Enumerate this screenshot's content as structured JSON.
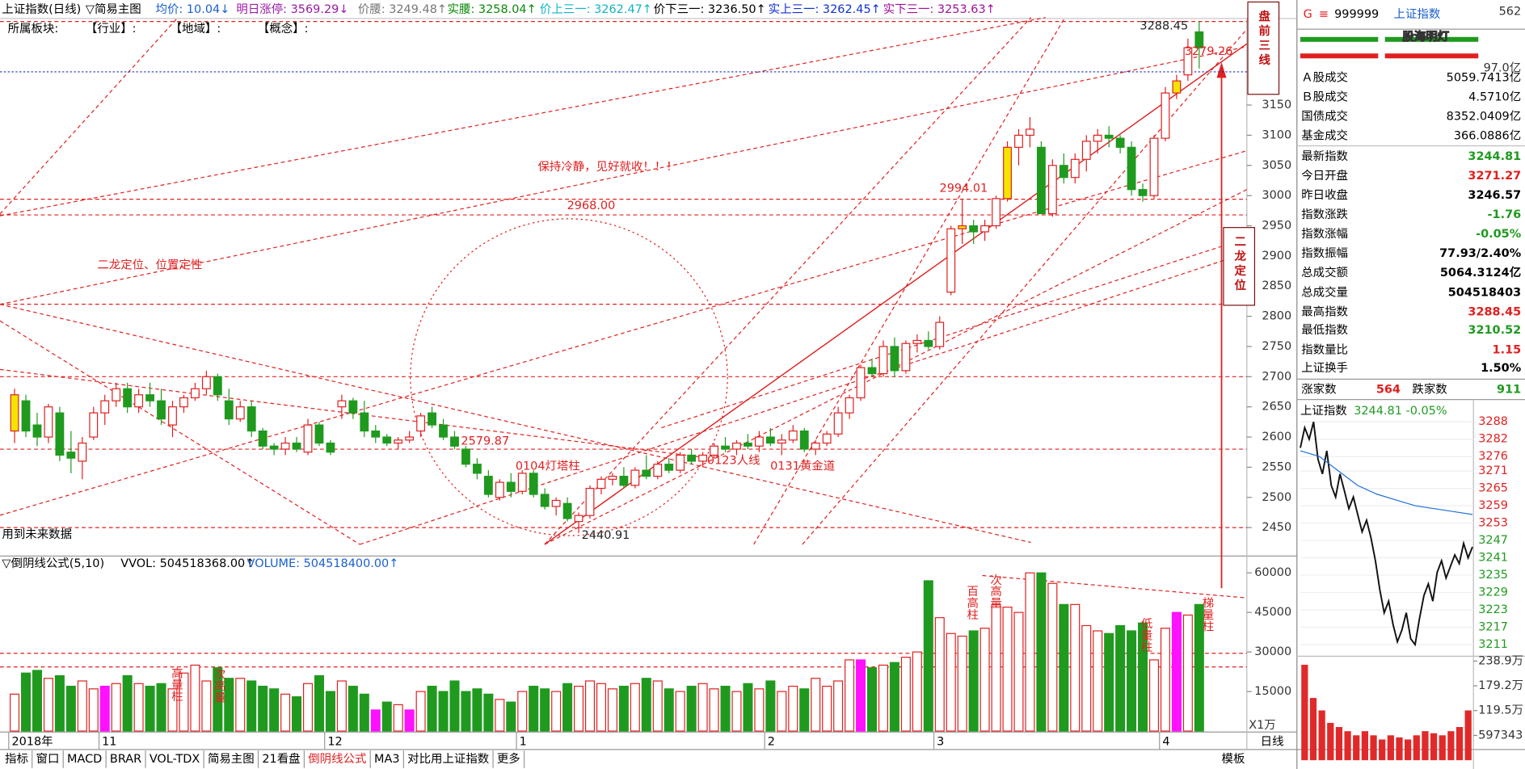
{
  "header": {
    "items": [
      {
        "text": "上证指数(日线)",
        "color": "#000000"
      },
      {
        "text": "▽简易主图",
        "color": "#000000"
      },
      {
        "text": "均价: 10.04↓",
        "color": "#1a5fd0"
      },
      {
        "text": "明日涨停: 3569.29↓",
        "color": "#9a1aa8"
      },
      {
        "text": "价腰: 3249.48↑",
        "color": "#777777"
      },
      {
        "text": "实腰: 3258.04↑",
        "color": "#0a8a0a"
      },
      {
        "text": "价上三一: 3262.47↑",
        "color": "#11b3c8"
      },
      {
        "text": "价下三一: 3236.50↑",
        "color": "#000000"
      },
      {
        "text": "实上三一: 3262.45↑",
        "color": "#1030d0"
      },
      {
        "text": "实下三一: 3253.63↑",
        "color": "#a0109a"
      }
    ],
    "sector": [
      "所属板块:",
      "【行业】:",
      "【地域】:",
      "【概念】:"
    ]
  },
  "chart_data": [
    {
      "type": "candlestick",
      "categories": [
        "2018年",
        null,
        null,
        null,
        null,
        null,
        null,
        null,
        "11",
        null,
        null,
        null,
        null,
        null,
        null,
        null,
        null,
        null,
        null,
        null,
        null,
        null,
        null,
        null,
        null,
        null,
        null,
        null,
        "12",
        null,
        null,
        null,
        null,
        null,
        null,
        null,
        null,
        null,
        null,
        null,
        null,
        null,
        null,
        null,
        null,
        "1",
        null,
        null,
        null,
        null,
        null,
        null,
        null,
        null,
        null,
        null,
        null,
        null,
        null,
        null,
        null,
        null,
        null,
        null,
        null,
        null,
        null,
        "2",
        null,
        null,
        null,
        null,
        null,
        null,
        null,
        null,
        null,
        null,
        null,
        null,
        null,
        null,
        "3",
        null,
        null,
        null,
        null,
        null,
        null,
        null,
        null,
        null,
        null,
        null,
        null,
        null,
        null,
        null,
        null,
        null,
        null,
        null,
        "4",
        null,
        null,
        null
      ],
      "ohlc": [
        [
          2610,
          2680,
          2590,
          2670
        ],
        [
          2660,
          2670,
          2600,
          2610
        ],
        [
          2620,
          2640,
          2585,
          2600
        ],
        [
          2600,
          2655,
          2590,
          2650
        ],
        [
          2640,
          2650,
          2560,
          2570
        ],
        [
          2575,
          2610,
          2540,
          2565
        ],
        [
          2560,
          2600,
          2530,
          2590
        ],
        [
          2600,
          2650,
          2595,
          2640
        ],
        [
          2640,
          2670,
          2620,
          2660
        ],
        [
          2660,
          2690,
          2650,
          2680
        ],
        [
          2680,
          2690,
          2640,
          2650
        ],
        [
          2650,
          2680,
          2640,
          2670
        ],
        [
          2670,
          2690,
          2650,
          2660
        ],
        [
          2660,
          2680,
          2620,
          2630
        ],
        [
          2620,
          2660,
          2600,
          2650
        ],
        [
          2650,
          2670,
          2640,
          2665
        ],
        [
          2665,
          2690,
          2660,
          2680
        ],
        [
          2680,
          2710,
          2670,
          2700
        ],
        [
          2700,
          2705,
          2660,
          2670
        ],
        [
          2660,
          2680,
          2620,
          2630
        ],
        [
          2630,
          2660,
          2625,
          2650
        ],
        [
          2650,
          2660,
          2600,
          2610
        ],
        [
          2610,
          2615,
          2580,
          2585
        ],
        [
          2585,
          2590,
          2570,
          2580
        ],
        [
          2580,
          2600,
          2570,
          2590
        ],
        [
          2590,
          2600,
          2575,
          2580
        ],
        [
          2575,
          2630,
          2570,
          2620
        ],
        [
          2620,
          2625,
          2585,
          2590
        ],
        [
          2590,
          2595,
          2570,
          2575
        ],
        [
          2650,
          2670,
          2630,
          2660
        ],
        [
          2660,
          2665,
          2630,
          2640
        ],
        [
          2640,
          2660,
          2600,
          2610
        ],
        [
          2610,
          2620,
          2590,
          2600
        ],
        [
          2600,
          2605,
          2585,
          2590
        ],
        [
          2590,
          2600,
          2580,
          2595
        ],
        [
          2595,
          2610,
          2590,
          2600
        ],
        [
          2610,
          2640,
          2600,
          2635
        ],
        [
          2640,
          2650,
          2615,
          2620
        ],
        [
          2620,
          2630,
          2595,
          2600
        ],
        [
          2600,
          2610,
          2580,
          2585
        ],
        [
          2580,
          2585,
          2550,
          2555
        ],
        [
          2555,
          2565,
          2530,
          2540
        ],
        [
          2535,
          2545,
          2500,
          2505
        ],
        [
          2500,
          2530,
          2495,
          2525
        ],
        [
          2525,
          2540,
          2500,
          2510
        ],
        [
          2510,
          2545,
          2505,
          2540
        ],
        [
          2540,
          2545,
          2500,
          2505
        ],
        [
          2505,
          2515,
          2480,
          2485
        ],
        [
          2485,
          2500,
          2470,
          2495
        ],
        [
          2490,
          2500,
          2460,
          2465
        ],
        [
          2460,
          2475,
          2440.91,
          2470
        ],
        [
          2470,
          2520,
          2465,
          2515
        ],
        [
          2515,
          2535,
          2505,
          2530
        ],
        [
          2530,
          2540,
          2520,
          2535
        ],
        [
          2535,
          2550,
          2515,
          2520
        ],
        [
          2520,
          2550,
          2515,
          2545
        ],
        [
          2545,
          2570,
          2530,
          2535
        ],
        [
          2535,
          2560,
          2530,
          2555
        ],
        [
          2555,
          2565,
          2540,
          2545
        ],
        [
          2545,
          2575,
          2540,
          2570
        ],
        [
          2570,
          2580,
          2555,
          2560
        ],
        [
          2560,
          2575,
          2550,
          2570
        ],
        [
          2570,
          2590,
          2565,
          2585
        ],
        [
          2585,
          2600,
          2575,
          2580
        ],
        [
          2580,
          2595,
          2570,
          2590
        ],
        [
          2590,
          2605,
          2580,
          2585
        ],
        [
          2585,
          2610,
          2575,
          2600
        ],
        [
          2600,
          2615,
          2585,
          2590
        ],
        [
          2590,
          2605,
          2570,
          2595
        ],
        [
          2595,
          2620,
          2590,
          2610
        ],
        [
          2610,
          2615,
          2575,
          2580
        ],
        [
          2580,
          2595,
          2570,
          2590
        ],
        [
          2590,
          2610,
          2585,
          2605
        ],
        [
          2605,
          2650,
          2600,
          2640
        ],
        [
          2640,
          2670,
          2630,
          2665
        ],
        [
          2665,
          2720,
          2660,
          2715
        ],
        [
          2715,
          2730,
          2700,
          2705
        ],
        [
          2705,
          2760,
          2700,
          2750
        ],
        [
          2750,
          2765,
          2700,
          2710
        ],
        [
          2710,
          2760,
          2705,
          2755
        ],
        [
          2755,
          2770,
          2740,
          2760
        ],
        [
          2760,
          2775,
          2745,
          2750
        ],
        [
          2750,
          2800,
          2745,
          2790
        ],
        [
          2840,
          2950,
          2835,
          2945
        ],
        [
          2945,
          2995,
          2920,
          2950
        ],
        [
          2950,
          2960,
          2920,
          2940
        ],
        [
          2940,
          2960,
          2925,
          2950
        ],
        [
          2950,
          3000,
          2945,
          2995
        ],
        [
          2995,
          3090,
          2990,
          3080
        ],
        [
          3080,
          3110,
          3050,
          3100
        ],
        [
          3100,
          3130,
          3080,
          3110
        ],
        [
          3080,
          3090,
          2970,
          2970
        ],
        [
          2970,
          3060,
          2965,
          3050
        ],
        [
          3050,
          3070,
          3020,
          3030
        ],
        [
          3030,
          3070,
          3020,
          3060
        ],
        [
          3060,
          3100,
          3040,
          3090
        ],
        [
          3090,
          3110,
          3070,
          3100
        ],
        [
          3100,
          3115,
          3080,
          3095
        ],
        [
          3095,
          3100,
          3070,
          3080
        ],
        [
          3080,
          3090,
          3000,
          3010
        ],
        [
          3010,
          3020,
          2990,
          3000
        ],
        [
          3000,
          3100,
          2995,
          3095
        ],
        [
          3095,
          3180,
          3090,
          3170
        ],
        [
          3170,
          3200,
          3160,
          3190
        ],
        [
          3200,
          3260,
          3190,
          3245
        ],
        [
          3271.27,
          3288.45,
          3210.52,
          3244.81
        ]
      ],
      "up_color": "#e02020",
      "down_color": "#1f9a1f",
      "yellow_indices": [
        0,
        84,
        88,
        103
      ],
      "yellow_color": "#f5e400",
      "ylim": [
        2406,
        3295
      ],
      "yticks": [
        2450,
        2500,
        2550,
        2600,
        2650,
        2700,
        2750,
        2800,
        2850,
        2900,
        2950,
        3000,
        3050,
        3100,
        3150
      ],
      "levels": [
        {
          "value": 3288.45,
          "color": "#e02020"
        },
        {
          "value": 3205,
          "color": "#2030c0"
        },
        {
          "value": 2994.01,
          "color": "#e02020"
        },
        {
          "value": 2968,
          "color": "#e02020"
        },
        {
          "value": 2820,
          "color": "#e02020"
        },
        {
          "value": 2700,
          "color": "#e02020"
        },
        {
          "value": 2579.87,
          "color": "#e02020"
        },
        {
          "value": 2450,
          "color": "#e02020"
        }
      ],
      "annotations": [
        "保持冷静，见好就收！！！",
        "二龙定位、位置定性",
        "2968.00",
        "2579.87",
        "0104灯塔柱",
        "0123人线",
        "0131黄金道",
        "2440.91",
        "2994.01",
        "3288.45",
        "3279.26",
        "用到未来数据"
      ],
      "boxes": [
        "盘前三线",
        "二龙定位"
      ]
    },
    {
      "type": "bar",
      "title": "▽倒阴线公式(5,10)",
      "series_labels": [
        {
          "text": "VVOL: 504518368.00↑",
          "color": "#000000"
        },
        {
          "text": "VOLUME: 504518400.00↑",
          "color": "#1a5fd0"
        }
      ],
      "values": [
        14000,
        22000,
        23000,
        20000,
        21000,
        17000,
        19000,
        16000,
        17000,
        18000,
        21000,
        18000,
        17000,
        18000,
        16000,
        22000,
        25000,
        19000,
        24000,
        20000,
        20000,
        19000,
        17000,
        16000,
        14000,
        13000,
        18000,
        21000,
        15000,
        19000,
        17000,
        14000,
        8000,
        11000,
        10000,
        8000,
        15000,
        17000,
        15000,
        19000,
        15000,
        16000,
        14000,
        12000,
        11000,
        15000,
        17000,
        16000,
        15000,
        18000,
        17000,
        19000,
        18000,
        16000,
        17000,
        18000,
        20000,
        19000,
        16000,
        15000,
        17000,
        18000,
        16000,
        17000,
        15000,
        18000,
        16000,
        19000,
        15000,
        17000,
        16000,
        20000,
        17000,
        19000,
        27000,
        27000,
        24000,
        25000,
        26000,
        28000,
        30000,
        57000,
        43000,
        37000,
        36000,
        38000,
        39000,
        48000,
        47000,
        45000,
        60000,
        60000,
        56000,
        48000,
        48000,
        40000,
        38000,
        37000,
        40000,
        38000,
        41000,
        27000,
        39000,
        45000,
        44000,
        48000
      ],
      "highlight_indices": [
        8,
        32,
        35,
        75,
        103
      ],
      "highlight_color": "#ff10ff",
      "ylim": [
        0,
        66000
      ],
      "yticks": [
        15000,
        30000,
        45000,
        60000
      ],
      "unit_label": "X1万",
      "annotations": [
        "高量柱",
        "次高量",
        "百高柱",
        "次高量",
        "低量柱",
        "梯量柱"
      ]
    },
    {
      "type": "line",
      "title": "上证指数",
      "subtitle": "3244.81 -0.05%",
      "series": [
        {
          "color": "#111111",
          "values": [
            3279,
            3286,
            3282,
            3288,
            3275,
            3270,
            3278,
            3266,
            3262,
            3270,
            3264,
            3258,
            3262,
            3256,
            3250,
            3254,
            3248,
            3240,
            3230,
            3222,
            3226,
            3218,
            3212,
            3216,
            3222,
            3213,
            3211,
            3220,
            3228,
            3232,
            3226,
            3236,
            3240,
            3234,
            3238,
            3242,
            3239,
            3246,
            3241,
            3244.81
          ]
        },
        {
          "color": "#1e6fd9",
          "values": [
            3278,
            3276,
            3271,
            3266,
            3263,
            3261,
            3259,
            3258,
            3257,
            3256
          ]
        }
      ],
      "ylim": [
        3208,
        3291
      ],
      "yticks": [
        3288,
        3282,
        3276,
        3271,
        3265,
        3259,
        3253,
        3247,
        3241,
        3235,
        3229,
        3223,
        3217,
        3211
      ]
    },
    {
      "type": "bar",
      "values": [
        230,
        150,
        120,
        90,
        80,
        70,
        60,
        70,
        60,
        50,
        60,
        55,
        50,
        60,
        70,
        65,
        60,
        70,
        80,
        120
      ],
      "color": "#e02a2a",
      "ylim": [
        0,
        238.9
      ],
      "yticks": [
        {
          "value": 238.9,
          "label": "238.9万"
        },
        {
          "value": 179.2,
          "label": "179.2万"
        },
        {
          "value": 119.5,
          "label": "119.5万"
        },
        {
          "value": 59.7343,
          "label": "597343"
        }
      ]
    }
  ],
  "side": {
    "code_prefix": "G",
    "menu": "≡",
    "code": "999999",
    "name": "上证指数",
    "corner": "562",
    "amount": "97.0亿",
    "rows": [
      {
        "label": "Ａ股成交",
        "value": "5059.7413亿",
        "color": "#000000"
      },
      {
        "label": "Ｂ股成交",
        "value": "4.5710亿",
        "color": "#000000"
      },
      {
        "label": "国债成交",
        "value": "8352.0409亿",
        "color": "#000000"
      },
      {
        "label": "基金成交",
        "value": "366.0886亿",
        "color": "#000000"
      },
      {
        "label": "最新指数",
        "value": "3244.81",
        "color": "#1f9a1f"
      },
      {
        "label": "今日开盘",
        "value": "3271.27",
        "color": "#e02020"
      },
      {
        "label": "昨日收盘",
        "value": "3246.57",
        "color": "#000000"
      },
      {
        "label": "指数涨跌",
        "value": "-1.76",
        "color": "#1f9a1f"
      },
      {
        "label": "指数涨幅",
        "value": "-0.05%",
        "color": "#1f9a1f"
      },
      {
        "label": "指数振幅",
        "value": "77.93/2.40%",
        "color": "#000000"
      },
      {
        "label": "总成交额",
        "value": "5064.3124亿",
        "color": "#000000"
      },
      {
        "label": "总成交量",
        "value": "504518403",
        "color": "#000000"
      },
      {
        "label": "最高指数",
        "value": "3288.45",
        "color": "#e02020"
      },
      {
        "label": "最低指数",
        "value": "3210.52",
        "color": "#1f9a1f"
      },
      {
        "label": "指数量比",
        "value": "1.15",
        "color": "#e02020"
      },
      {
        "label": "上证换手",
        "value": "1.50%",
        "color": "#000000"
      }
    ],
    "up_label": "涨家数",
    "up_count": "564",
    "down_label": "跌家数",
    "down_count": "911"
  },
  "tabs": [
    "指标",
    "窗口",
    "MACD",
    "BRAR",
    "VOL-TDX",
    "简易主图",
    "21看盘",
    "倒阴线公式",
    "MA3",
    "对比用上证指数",
    "更多"
  ],
  "active_tab": 7,
  "template_tab": "模板",
  "period": "日线",
  "watermark": "股海明灯"
}
